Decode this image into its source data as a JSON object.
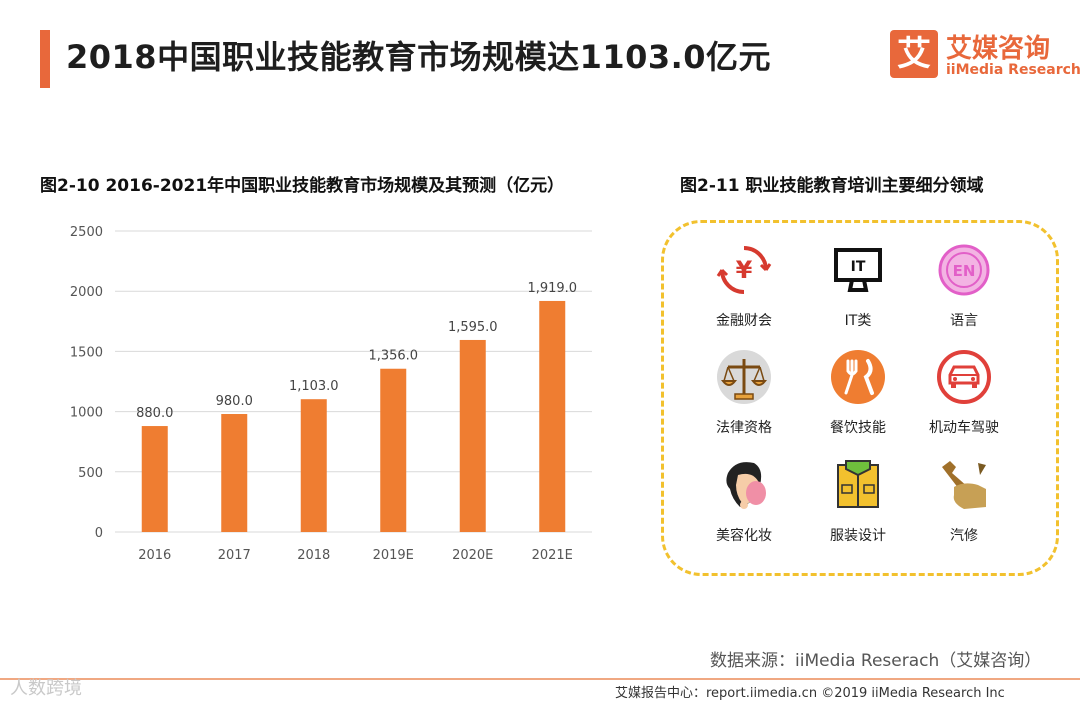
{
  "header": {
    "title": "2018中国职业技能教育市场规模达1103.0亿元",
    "logo_glyph": "艾",
    "logo_cn": "艾媒咨询",
    "logo_en": "iiMedia Research",
    "accent_color": "#e8683b"
  },
  "chart_data": {
    "type": "bar",
    "title": "图2-10 2016-2021年中国职业技能教育市场规模及其预测（亿元）",
    "categories": [
      "2016",
      "2017",
      "2018",
      "2019E",
      "2020E",
      "2021E"
    ],
    "values": [
      880.0,
      980.0,
      1103.0,
      1356.0,
      1595.0,
      1919.0
    ],
    "data_labels": [
      "880.0",
      "980.0",
      "1,103.0",
      "1,356.0",
      "1,595.0",
      "1,919.0"
    ],
    "yticks": [
      0,
      500,
      1000,
      1500,
      2000,
      2500
    ],
    "ylim": [
      0,
      2500
    ],
    "xlabel": "",
    "ylabel": "",
    "grid": true,
    "bar_color": "#ef7d31"
  },
  "segments": {
    "title": "图2-11 职业技能教育培训主要细分领域",
    "items": [
      {
        "label": "金融财会",
        "icon": "yuan-icon"
      },
      {
        "label": "IT类",
        "icon": "monitor-icon"
      },
      {
        "label": "语言",
        "icon": "english-icon"
      },
      {
        "label": "法律资格",
        "icon": "scales-icon"
      },
      {
        "label": "餐饮技能",
        "icon": "fork-knife-icon"
      },
      {
        "label": "机动车驾驶",
        "icon": "car-icon"
      },
      {
        "label": "美容化妆",
        "icon": "makeup-icon"
      },
      {
        "label": "服装设计",
        "icon": "clothing-icon"
      },
      {
        "label": "汽修",
        "icon": "wrench-icon"
      }
    ]
  },
  "source": "数据来源：iiMedia Reserach（艾媒咨询）",
  "footer": "艾媒报告中心：report.iimedia.cn  ©2019  iiMedia Research  Inc",
  "watermark": "人数跨境"
}
